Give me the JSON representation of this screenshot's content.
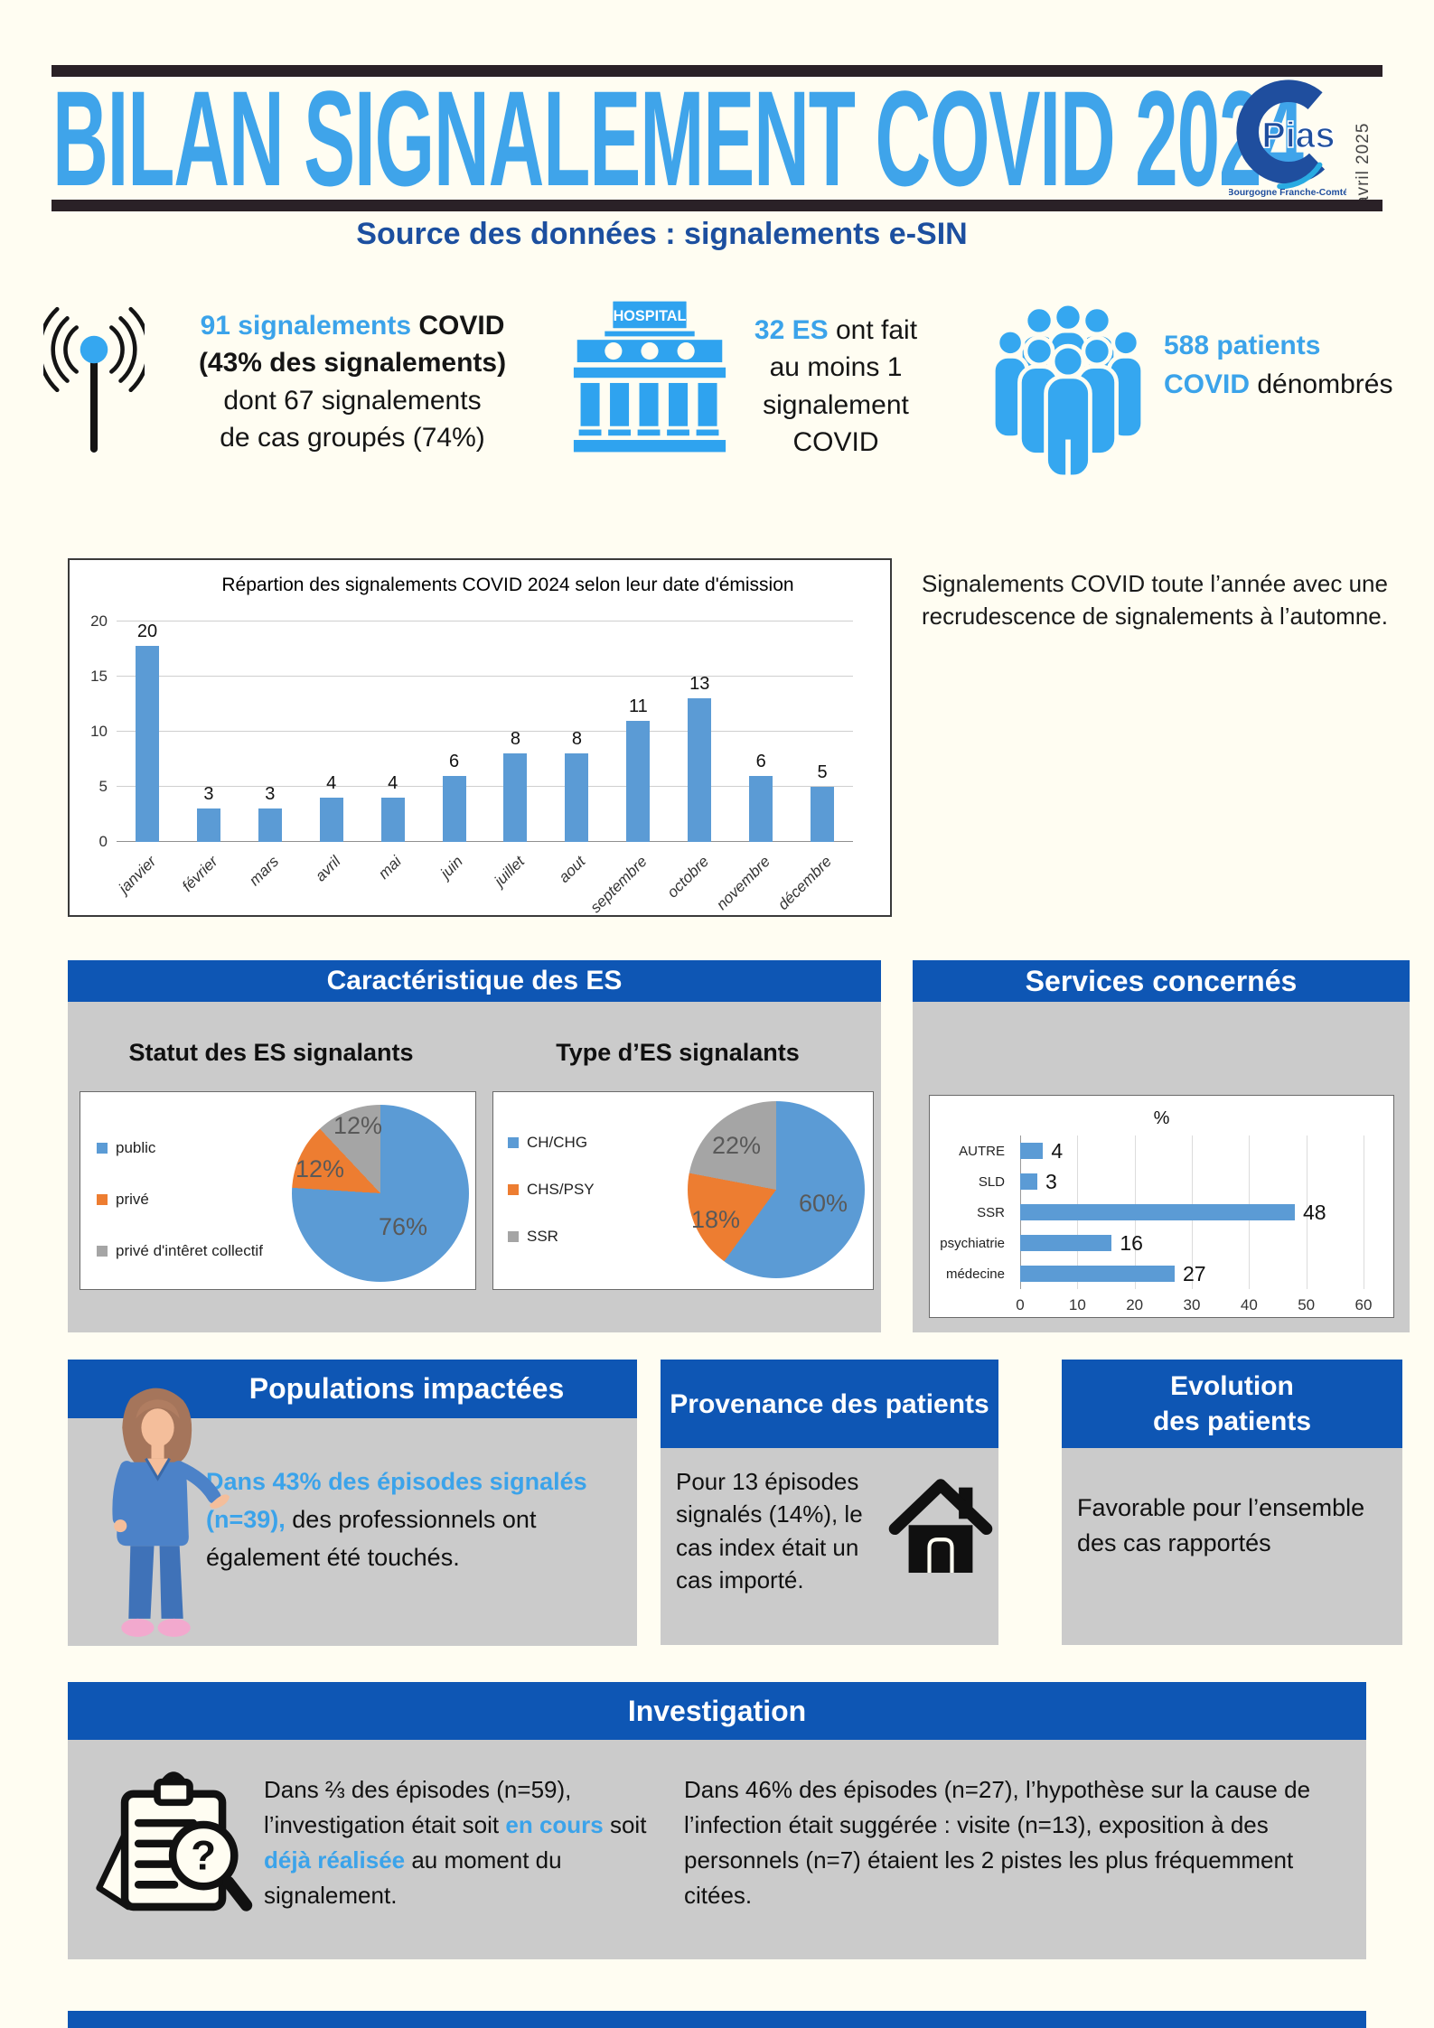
{
  "header": {
    "title": "BILAN SIGNALEMENT COVID 2024",
    "logo_text": "Pias",
    "logo_region": "Bourgogne Franche-Comté",
    "edition_date": "avril 2025",
    "subtitle": "Source des données : signalements e-SIN"
  },
  "stats": {
    "signalements": {
      "blue": "91 signalements",
      "covid": " COVID",
      "line2": "(43% des signalements)",
      "line3": "dont 67 signalements",
      "line4": "de cas groupés (74%)"
    },
    "es": {
      "blue": "32 ES",
      "rest": " ont fait",
      "line2": "au moins 1",
      "line3": "signalement",
      "line4": "COVID",
      "hospital_sign": "HOSPITAL"
    },
    "patients": {
      "line1_blue": "588 patients",
      "line2_blue": "COVID",
      "line2_black": " dénombrés"
    }
  },
  "monthly_note": "Signalements COVID toute l’année avec une recrudescence de signalements à l’automne.",
  "sections": {
    "caracteristique": {
      "title": "Caractéristique des ES",
      "left_title": "Statut des ES signalants",
      "right_title": "Type d’ES signalants"
    },
    "services": {
      "title": "Services concernés"
    },
    "populations": {
      "title": "Populations impactées",
      "blue": "Dans 43% des épisodes signalés (n=39),",
      "black": " des professionnels ont également été touchés."
    },
    "provenance": {
      "title": "Provenance des patients",
      "text": "Pour 13 épisodes signalés (14%), le cas index était un cas importé."
    },
    "evolution": {
      "title_line1": "Evolution",
      "title_line2": "des patients",
      "text": "Favorable pour l’ensemble des cas rapportés"
    },
    "investigation": {
      "title": "Investigation",
      "left_a": "Dans ⅔ des épisodes (n=59), l’investigation était soit ",
      "left_b": "en cours",
      "left_c": " soit ",
      "left_d": "déjà réalisée",
      "left_e": " au moment du signalement.",
      "right": "Dans 46% des épisodes (n=27), l’hypothèse sur la cause de l’infection était suggérée : visite (n=13), exposition à des personnels (n=7) étaient les 2 pistes les plus fréquemment citées."
    }
  },
  "colors": {
    "accent_blue": "#3BA3EA",
    "section_blue": "#0E56B4",
    "panel_gray": "#CBCBCB",
    "bar_blue": "#5B9BD5",
    "orange": "#ED7D31",
    "pie_gray": "#A5A5A5",
    "rule_dark": "#2A2127",
    "navy_text": "#1C4F9F"
  },
  "chart_data": [
    {
      "id": "monthly",
      "type": "bar",
      "title": "Répartion des signalements COVID 2024 selon leur date d'émission",
      "categories": [
        "janvier",
        "février",
        "mars",
        "avril",
        "mai",
        "juin",
        "juillet",
        "aout",
        "septembre",
        "octobre",
        "novembre",
        "décembre"
      ],
      "values": [
        20,
        3,
        3,
        4,
        4,
        6,
        8,
        8,
        11,
        13,
        6,
        5
      ],
      "xlabel": "",
      "ylabel": "",
      "ylim": [
        0,
        20
      ],
      "yticks": [
        0,
        5,
        10,
        15,
        20
      ],
      "grid": true,
      "bar_color": "#5B9BD5"
    },
    {
      "id": "statut-es",
      "type": "pie",
      "title": "Statut des ES signalants",
      "labels": [
        "public",
        "privé",
        "privé d'intêret collectif"
      ],
      "values": [
        76,
        12,
        12
      ],
      "display": [
        "76%",
        "12%",
        "12%"
      ],
      "colors": [
        "#5B9BD5",
        "#ED7D31",
        "#A5A5A5"
      ],
      "legend_position": "left"
    },
    {
      "id": "type-es",
      "type": "pie",
      "title": "Type d’ES signalants",
      "labels": [
        "CH/CHG",
        "CHS/PSY",
        "SSR"
      ],
      "values": [
        60,
        18,
        22
      ],
      "display": [
        "60%",
        "18%",
        "22%"
      ],
      "colors": [
        "#5B9BD5",
        "#ED7D31",
        "#A5A5A5"
      ],
      "legend_position": "left"
    },
    {
      "id": "services",
      "type": "bar-horizontal",
      "title": "Services concernés",
      "unit": "%",
      "categories": [
        "AUTRE",
        "SLD",
        "SSR",
        "psychiatrie",
        "médecine"
      ],
      "values": [
        4,
        3,
        48,
        16,
        27
      ],
      "xlim": [
        0,
        60
      ],
      "xticks": [
        0,
        10,
        20,
        30,
        40,
        50,
        60
      ],
      "grid": true,
      "bar_color": "#5B9BD5"
    }
  ]
}
